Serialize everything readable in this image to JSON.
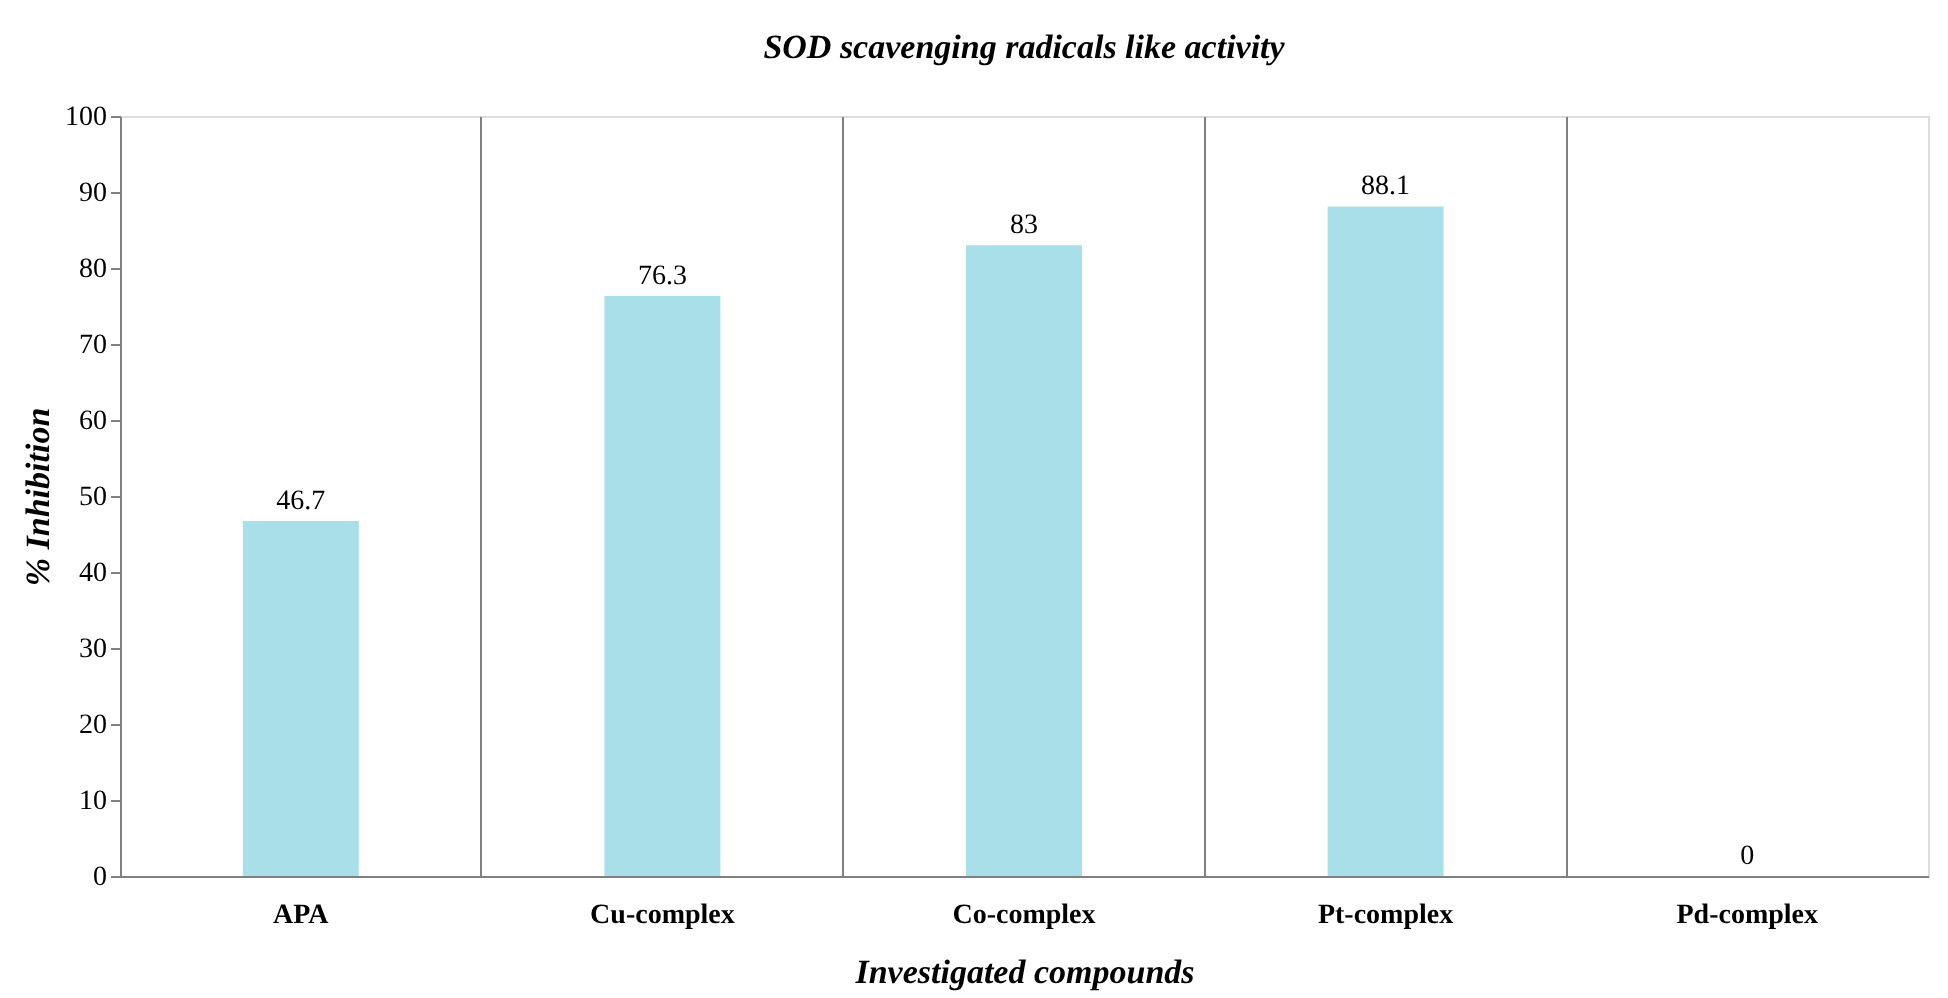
{
  "chart_data": {
    "type": "bar",
    "title": "SOD scavenging radicals like activity",
    "xlabel": "Investigated compounds",
    "ylabel": "% Inhibition",
    "categories": [
      "APA",
      "Cu-complex",
      "Co-complex",
      "Pt-complex",
      "Pd-complex"
    ],
    "values": [
      46.7,
      76.3,
      83,
      88.1,
      0
    ],
    "color": "#a9dfe8",
    "ylim": [
      0,
      100
    ],
    "yticks": [
      0,
      10,
      20,
      30,
      40,
      50,
      60,
      70,
      80,
      90,
      100
    ],
    "grid": "x",
    "data_labels": true
  }
}
